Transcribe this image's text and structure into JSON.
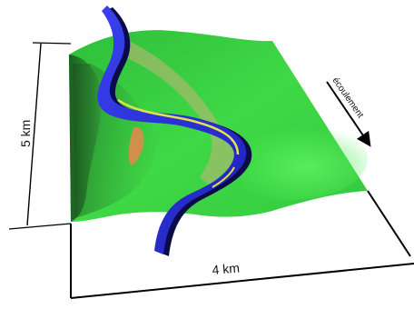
{
  "labels": {
    "height_dimension": "5 km",
    "width_dimension": "4 km",
    "flow_direction": "écoulement"
  },
  "colors": {
    "terrain_light": "#3fe24a",
    "terrain_mid": "#2fbf3a",
    "terrain_dark": "#1e7a28",
    "channel_blue": "#2a2fd8",
    "channel_dark": "#0b0b4a",
    "levee_yellow": "#e2e24a",
    "levee_beige": "#c8b37a",
    "sediment_orange": "#e08a4a",
    "outline": "#000000"
  },
  "icons": {
    "flow_arrow": "arrow-down-right-icon"
  }
}
